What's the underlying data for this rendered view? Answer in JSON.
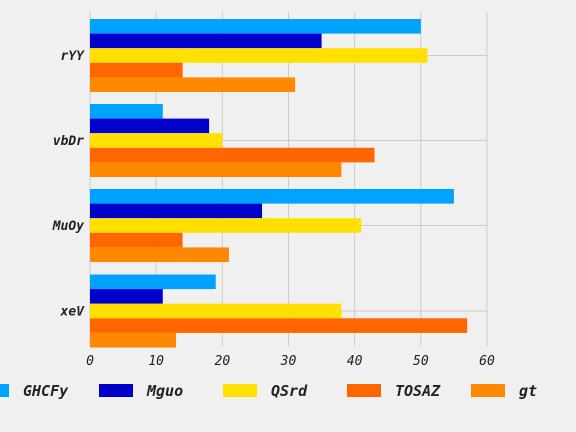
{
  "chart_data": {
    "type": "bar",
    "orientation": "horizontal",
    "title": "",
    "xlabel": "",
    "ylabel": "",
    "categories": [
      "rYY",
      "vbDr",
      "MuOy",
      "xeV"
    ],
    "xlim": [
      0,
      60
    ],
    "xticks": [
      0,
      10,
      20,
      30,
      40,
      50,
      60
    ],
    "grid": true,
    "legend_position": "bottom",
    "series": [
      {
        "name": "GHCFy",
        "color": "#00a2ff",
        "values": [
          50,
          11,
          55,
          19
        ]
      },
      {
        "name": "Mguo",
        "color": "#0000cc",
        "values": [
          35,
          18,
          26,
          11
        ]
      },
      {
        "name": "QSrd",
        "color": "#ffe000",
        "values": [
          51,
          20,
          41,
          38
        ]
      },
      {
        "name": "TOSAZ",
        "color": "#ff6600",
        "values": [
          14,
          43,
          14,
          57
        ]
      },
      {
        "name": "gt",
        "color": "#ff8800",
        "values": [
          31,
          38,
          21,
          13
        ]
      }
    ]
  }
}
